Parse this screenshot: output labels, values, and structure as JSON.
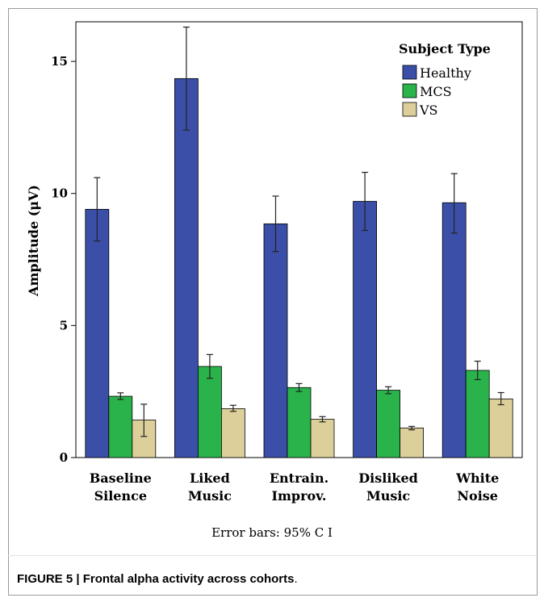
{
  "chart_data": {
    "type": "bar",
    "ylabel": "Amplitude (μV)",
    "ylim": [
      0,
      16.5
    ],
    "yticks": [
      0,
      5,
      10,
      15
    ],
    "categories": [
      [
        "Baseline",
        "Silence"
      ],
      [
        "Liked",
        "Music"
      ],
      [
        "Entrain.",
        "Improv."
      ],
      [
        "Disliked",
        "Music"
      ],
      [
        "White",
        "Noise"
      ]
    ],
    "legend_title": "Subject Type",
    "legend_position": "top-right",
    "series": [
      {
        "name": "Healthy",
        "color": "#3b4fa8",
        "values": [
          9.4,
          14.35,
          8.85,
          9.7,
          9.65
        ],
        "ci_low": [
          8.2,
          12.4,
          7.8,
          8.6,
          8.5
        ],
        "ci_high": [
          10.6,
          16.3,
          9.9,
          10.8,
          10.75
        ]
      },
      {
        "name": "MCS",
        "color": "#2ab34b",
        "values": [
          2.32,
          3.45,
          2.65,
          2.55,
          3.3
        ],
        "ci_low": [
          2.2,
          3.0,
          2.5,
          2.42,
          2.95
        ],
        "ci_high": [
          2.45,
          3.9,
          2.8,
          2.68,
          3.65
        ]
      },
      {
        "name": "VS",
        "color": "#dccf9a",
        "values": [
          1.42,
          1.85,
          1.45,
          1.12,
          2.22
        ],
        "ci_low": [
          0.8,
          1.75,
          1.35,
          1.05,
          2.0
        ],
        "ci_high": [
          2.02,
          1.98,
          1.55,
          1.18,
          2.46
        ]
      }
    ]
  },
  "note": "Error bars: 95% C I",
  "caption": {
    "label": "FIGURE 5 | Frontal alpha activity across cohorts",
    "suffix": "."
  }
}
